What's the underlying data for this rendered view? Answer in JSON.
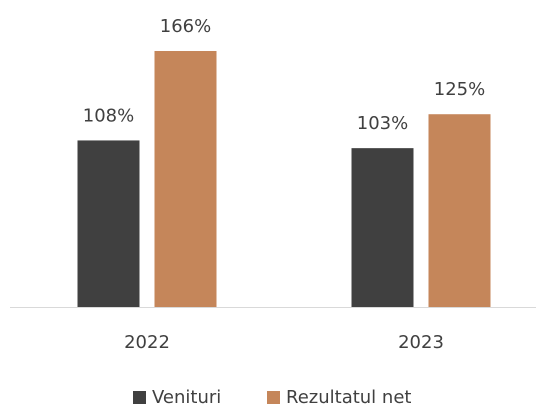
{
  "chart_data": {
    "type": "bar",
    "categories": [
      "2022",
      "2023"
    ],
    "series": [
      {
        "name": "Venituri",
        "color": "#404040",
        "values": [
          108,
          103
        ],
        "value_labels": [
          "108%",
          "103%"
        ]
      },
      {
        "name": "Rezultatul net",
        "color": "#c5865a",
        "values": [
          166,
          125
        ],
        "value_labels": [
          "166%",
          "125%"
        ]
      }
    ],
    "ylim": [
      0,
      180
    ],
    "legend": "bottom"
  }
}
